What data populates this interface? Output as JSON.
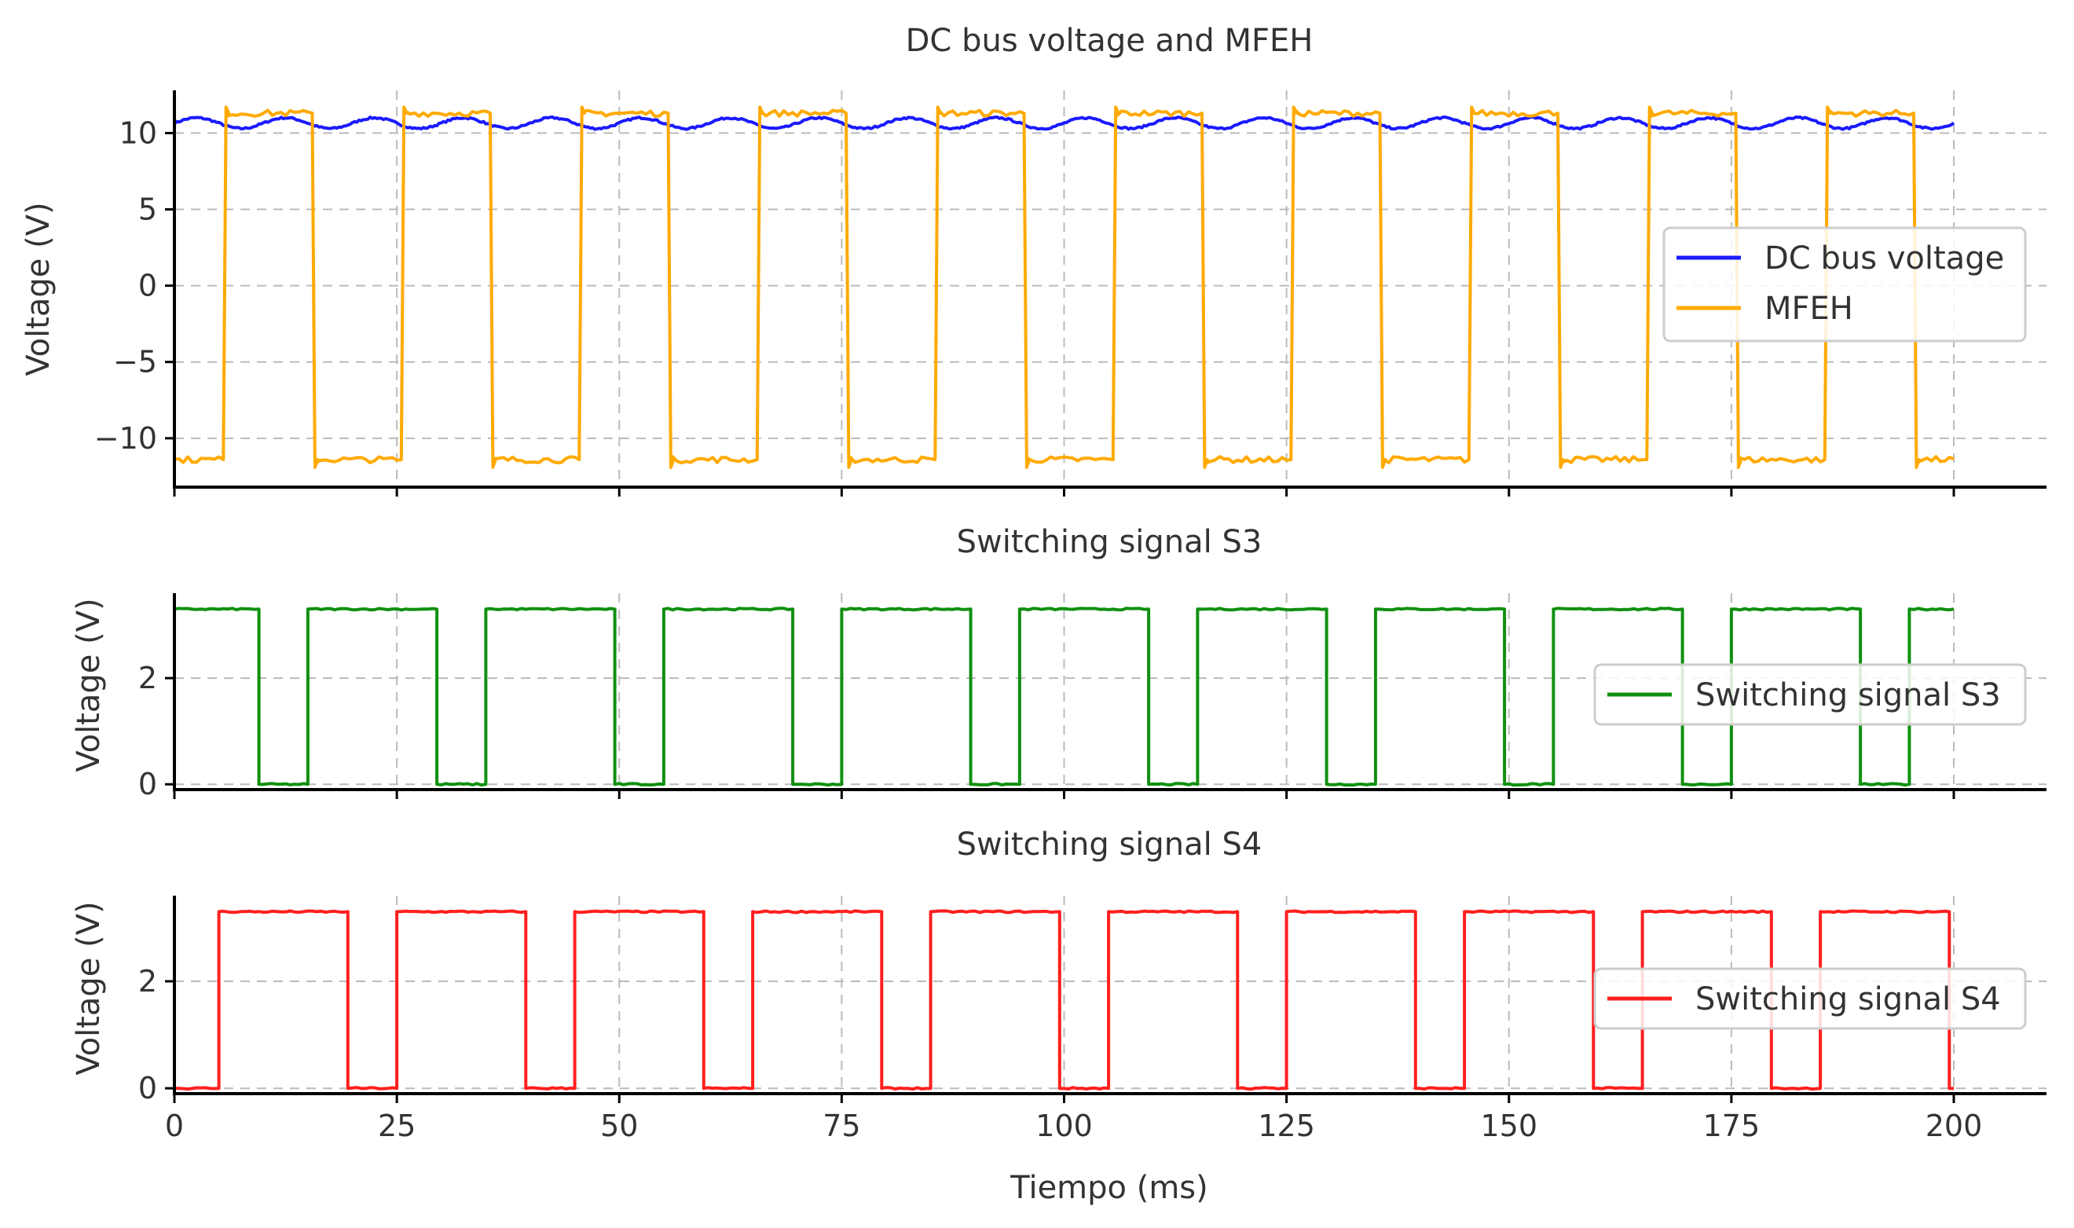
{
  "figure": {
    "xlabel": "Tiempo (ms)",
    "xlim": [
      0,
      200
    ],
    "xticks": [
      0,
      25,
      50,
      75,
      100,
      125,
      150,
      175,
      200
    ]
  },
  "chart_data": [
    {
      "type": "line",
      "title": "DC bus voltage and MFEH",
      "xlabel": "",
      "ylabel": "Voltage (V)",
      "xlim": [
        0,
        200
      ],
      "ylim": [
        -13.2,
        12.8
      ],
      "yticks": [
        10,
        5,
        0,
        -5,
        -10
      ],
      "grid": true,
      "legend_position": "center-right",
      "series": [
        {
          "name": "DC bus voltage",
          "color": "#1a1aff",
          "kind": "ripple",
          "mean": 10.65,
          "amplitude": 0.35,
          "period_ms": 10,
          "x_range": [
            0,
            200
          ]
        },
        {
          "name": "MFEH",
          "color": "#ffaa00",
          "kind": "square",
          "high": 11.3,
          "low": -11.4,
          "rise_edges_ms": [
            5.5,
            25.5,
            45.5,
            65.5,
            85.5,
            105.5,
            125.5,
            145.5,
            165.5,
            185.5
          ],
          "fall_edges_ms": [
            15.5,
            35.5,
            55.5,
            75.5,
            95.5,
            115.5,
            135.5,
            155.5,
            175.5,
            195.5
          ],
          "x_range": [
            0,
            200
          ]
        }
      ]
    },
    {
      "type": "line",
      "title": "Switching signal S3",
      "xlabel": "",
      "ylabel": "Voltage (V)",
      "xlim": [
        0,
        200
      ],
      "ylim": [
        -0.1,
        3.6
      ],
      "yticks": [
        2,
        0
      ],
      "grid": true,
      "legend_position": "center-right",
      "series": [
        {
          "name": "Switching signal S3",
          "color": "#109010",
          "kind": "square",
          "high": 3.3,
          "low": 0,
          "fall_edges_ms": [
            9.5,
            29.5,
            49.5,
            69.5,
            89.5,
            109.5,
            129.5,
            149.5,
            169.5,
            189.5
          ],
          "rise_edges_ms": [
            15,
            35,
            55,
            75,
            95,
            115,
            135,
            155,
            175,
            195
          ],
          "x_range": [
            0,
            200
          ]
        }
      ]
    },
    {
      "type": "line",
      "title": "Switching signal S4",
      "xlabel": "Tiempo (ms)",
      "ylabel": "Voltage (V)",
      "xlim": [
        0,
        200
      ],
      "ylim": [
        -0.1,
        3.6
      ],
      "yticks": [
        2,
        0
      ],
      "grid": true,
      "legend_position": "center-right",
      "series": [
        {
          "name": "Switching signal S4",
          "color": "#ff1f1f",
          "kind": "square",
          "high": 3.3,
          "low": 0,
          "rise_edges_ms": [
            5,
            25,
            45,
            65,
            85,
            105,
            125,
            145,
            165,
            185
          ],
          "fall_edges_ms": [
            19.5,
            39.5,
            59.5,
            79.5,
            99.5,
            119.5,
            139.5,
            159.5,
            179.5,
            199.5
          ],
          "x_range": [
            0,
            200
          ]
        }
      ]
    }
  ]
}
